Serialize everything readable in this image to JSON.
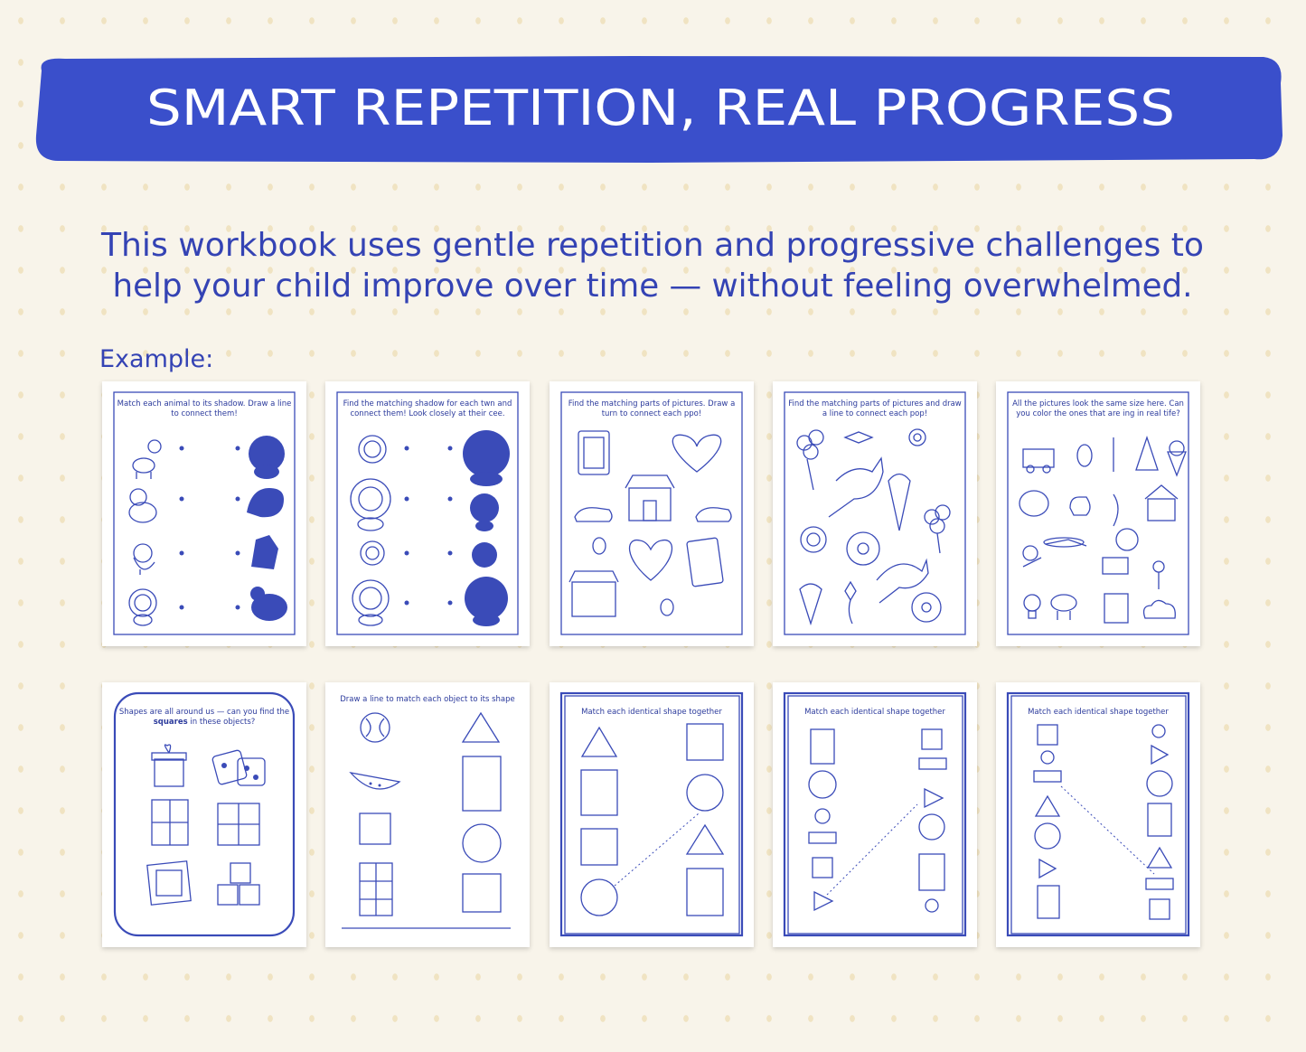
{
  "banner": {
    "title": "SMART REPETITION, REAL PROGRESS"
  },
  "description": {
    "lines": [
      "This workbook uses gentle repetition and progressive challenges to",
      "help your child improve over time — without feeling overwhelmed."
    ]
  },
  "example_label": "Example:",
  "pages": [
    {
      "instruction": [
        {
          "text": "Match each animal to its shadow. Draw a line to connect them!"
        }
      ]
    },
    {
      "instruction": [
        {
          "text": "Find the matching shadow for each twn and connect them! Look closely at their cee."
        }
      ]
    },
    {
      "instruction": [
        {
          "text": "Find the matching parts of pictures. Draw a turn to connect each ppo!"
        }
      ]
    },
    {
      "instruction": [
        {
          "text": "Find the matching parts of pictures and draw a line to connect each pop!"
        }
      ]
    },
    {
      "instruction": [
        {
          "text": "All the pictures look the same size here. Can you color the ones that are ing in real tife?"
        }
      ]
    },
    {
      "instruction": [
        {
          "text": "Shapes are all around us — can you find the "
        },
        {
          "text": "squares",
          "bold": true
        },
        {
          "text": " in these objects?"
        }
      ]
    },
    {
      "instruction": [
        {
          "text": "Draw a line to match each object to its shape"
        }
      ]
    },
    {
      "instruction": [
        {
          "text": "Match each identical shape together"
        }
      ]
    },
    {
      "instruction": [
        {
          "text": "Match each identical shape together"
        }
      ]
    },
    {
      "instruction": [
        {
          "text": "Match each identical shape together"
        }
      ]
    }
  ]
}
